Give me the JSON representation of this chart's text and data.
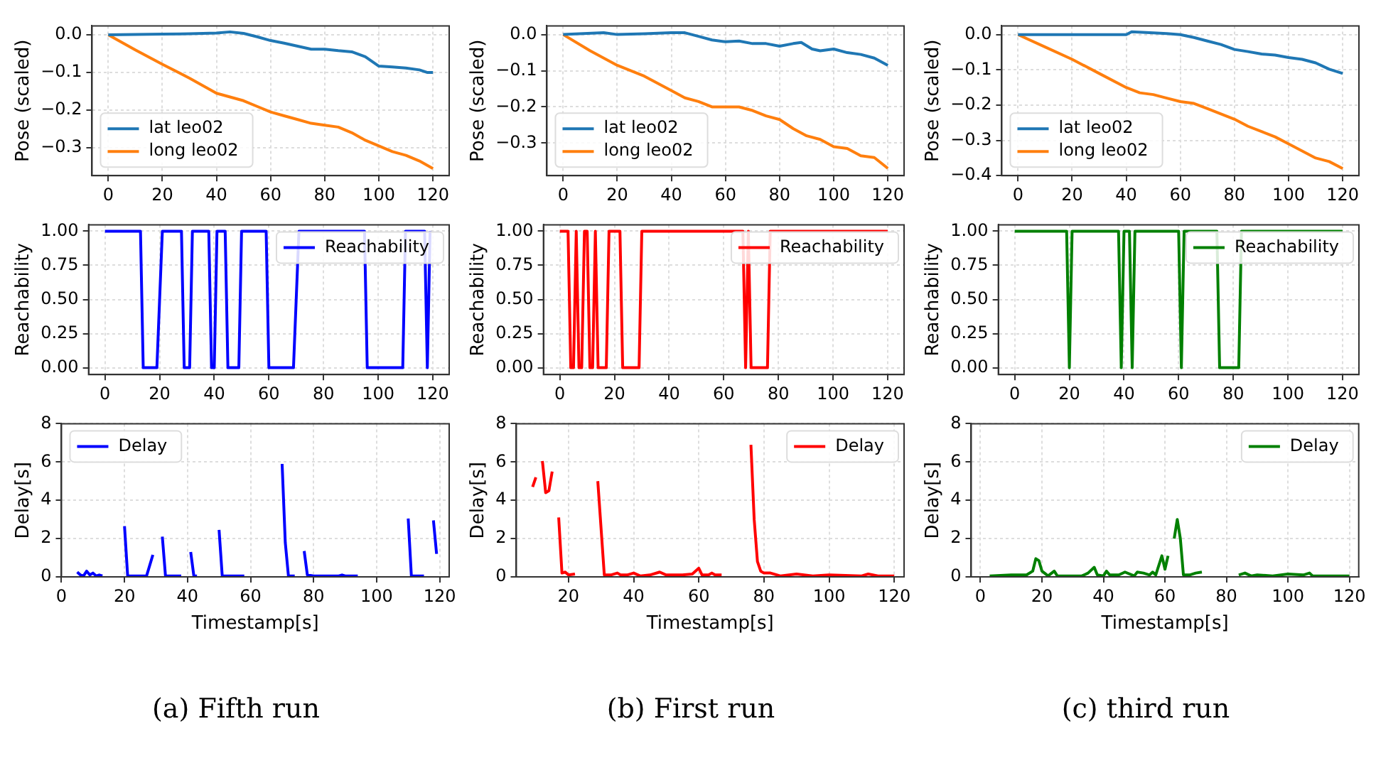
{
  "chart_data": [
    {
      "type": "line",
      "ylabel": "Pose (scaled)",
      "xlim": [
        -6,
        126
      ],
      "xticks": [
        0,
        20,
        40,
        60,
        80,
        100,
        120
      ],
      "ylim": [
        -0.374,
        0.024
      ],
      "yticks": [
        {
          "value": 0,
          "label": "0.0"
        },
        {
          "value": -0.1,
          "label": "−0.1"
        },
        {
          "value": -0.2,
          "label": "−0.2"
        },
        {
          "value": -0.3,
          "label": "−0.3"
        }
      ],
      "grid": true,
      "legend": "bottom left",
      "series": [
        {
          "name": "lat leo02",
          "color": "#1f77b4",
          "x": [
            0,
            10,
            20,
            30,
            40,
            45,
            50,
            55,
            60,
            65,
            70,
            75,
            80,
            85,
            90,
            95,
            100,
            105,
            110,
            115,
            118,
            120
          ],
          "values": [
            0,
            0.001,
            0.002,
            0.003,
            0.005,
            0.008,
            0.004,
            -0.005,
            -0.015,
            -0.022,
            -0.03,
            -0.038,
            -0.038,
            -0.042,
            -0.045,
            -0.058,
            -0.083,
            -0.085,
            -0.088,
            -0.093,
            -0.1,
            -0.1
          ]
        },
        {
          "name": "long leo02",
          "color": "#ff7f0e",
          "x": [
            0,
            10,
            20,
            30,
            40,
            45,
            50,
            55,
            60,
            65,
            70,
            75,
            80,
            85,
            90,
            95,
            100,
            105,
            110,
            115,
            120
          ],
          "values": [
            0,
            -0.04,
            -0.078,
            -0.115,
            -0.155,
            -0.165,
            -0.175,
            -0.19,
            -0.205,
            -0.215,
            -0.225,
            -0.235,
            -0.24,
            -0.245,
            -0.26,
            -0.28,
            -0.295,
            -0.31,
            -0.32,
            -0.335,
            -0.355
          ]
        }
      ]
    },
    {
      "type": "line",
      "ylabel": "Reachability",
      "xlim": [
        -6,
        126
      ],
      "xticks": [
        0,
        20,
        40,
        60,
        80,
        100,
        120
      ],
      "ylim": [
        -0.05,
        1.047
      ],
      "yticks": [
        {
          "value": 0,
          "label": "0.00"
        },
        {
          "value": 0.25,
          "label": "0.25"
        },
        {
          "value": 0.5,
          "label": "0.50"
        },
        {
          "value": 0.75,
          "label": "0.75"
        },
        {
          "value": 1,
          "label": "1.00"
        }
      ],
      "grid": true,
      "legend": "top right",
      "series": [
        {
          "name": "Reachability",
          "color": "#0000ff",
          "x": [
            0,
            13,
            14,
            19,
            21,
            28,
            29,
            31,
            32,
            38,
            39,
            40,
            41,
            44,
            45,
            49,
            50,
            59,
            60,
            69,
            71,
            95,
            96,
            109,
            110,
            117,
            118,
            119
          ],
          "values": [
            1,
            1,
            0,
            0,
            1,
            1,
            0,
            0,
            1,
            1,
            0,
            0,
            1,
            1,
            0,
            0,
            1,
            1,
            0,
            0,
            1,
            1,
            0,
            0,
            1,
            1,
            0,
            1
          ]
        }
      ]
    },
    {
      "type": "line",
      "xlabel": "Timestamp[s]",
      "ylabel": "Delay[s]",
      "xlim": [
        0,
        123
      ],
      "xticks": [
        0,
        20,
        40,
        60,
        80,
        100,
        120
      ],
      "ylim": [
        0,
        8
      ],
      "yticks": [
        0,
        2,
        4,
        6,
        8
      ],
      "grid": true,
      "legend": "top left",
      "annotations": [
        "(a) Fifth run"
      ],
      "series": [
        {
          "name": "Delay",
          "color": "#0000ff",
          "x": [
            5,
            6,
            7,
            8,
            9,
            10,
            11,
            12,
            13,
            16,
            20,
            21,
            27,
            29,
            30,
            32,
            33,
            38,
            39,
            41,
            42,
            43,
            46,
            50,
            51,
            58,
            64,
            70,
            71,
            72,
            74,
            75,
            77,
            78,
            80,
            88,
            89,
            90,
            94,
            100,
            110,
            111,
            115,
            116,
            118,
            119
          ],
          "values": [
            0.25,
            0.1,
            0.05,
            0.3,
            0.1,
            0.2,
            0.05,
            0.1,
            0.05,
            null,
            2.65,
            0.05,
            0.05,
            1.15,
            null,
            2.1,
            0.05,
            0.05,
            null,
            1.3,
            0.05,
            0.05,
            null,
            2.45,
            0.05,
            0.05,
            null,
            5.9,
            1.8,
            0.05,
            0.05,
            null,
            1.35,
            0.1,
            0.05,
            0.05,
            0.1,
            0.05,
            0.05,
            null,
            3.05,
            0.05,
            0.05,
            null,
            2.95,
            1.2
          ]
        }
      ]
    },
    {
      "type": "line",
      "ylabel": "Pose (scaled)",
      "xlim": [
        -6,
        126
      ],
      "xticks": [
        0,
        20,
        40,
        60,
        80,
        100,
        120
      ],
      "ylim": [
        -0.39,
        0.024
      ],
      "yticks": [
        {
          "value": 0,
          "label": "0.0"
        },
        {
          "value": -0.1,
          "label": "−0.1"
        },
        {
          "value": -0.2,
          "label": "−0.2"
        },
        {
          "value": -0.3,
          "label": "−0.3"
        }
      ],
      "grid": true,
      "legend": "bottom left",
      "series": [
        {
          "name": "lat leo02",
          "color": "#1f77b4",
          "x": [
            0,
            15,
            20,
            30,
            40,
            45,
            50,
            55,
            60,
            65,
            70,
            75,
            80,
            85,
            88,
            92,
            95,
            100,
            105,
            110,
            115,
            120
          ],
          "values": [
            0,
            0.005,
            0,
            0.002,
            0.005,
            0.005,
            -0.005,
            -0.015,
            -0.02,
            -0.018,
            -0.025,
            -0.025,
            -0.032,
            -0.025,
            -0.022,
            -0.04,
            -0.045,
            -0.04,
            -0.05,
            -0.055,
            -0.065,
            -0.085
          ]
        },
        {
          "name": "long leo02",
          "color": "#ff7f0e",
          "x": [
            0,
            10,
            20,
            30,
            40,
            45,
            50,
            55,
            60,
            65,
            70,
            75,
            80,
            85,
            90,
            95,
            100,
            105,
            110,
            115,
            120
          ],
          "values": [
            0,
            -0.045,
            -0.085,
            -0.115,
            -0.155,
            -0.175,
            -0.185,
            -0.2,
            -0.2,
            -0.2,
            -0.21,
            -0.225,
            -0.235,
            -0.26,
            -0.28,
            -0.29,
            -0.31,
            -0.315,
            -0.335,
            -0.34,
            -0.37
          ]
        }
      ]
    },
    {
      "type": "line",
      "ylabel": "Reachability",
      "xlim": [
        -6,
        126
      ],
      "xticks": [
        0,
        20,
        40,
        60,
        80,
        100,
        120
      ],
      "ylim": [
        -0.05,
        1.047
      ],
      "yticks": [
        {
          "value": 0,
          "label": "0.00"
        },
        {
          "value": 0.25,
          "label": "0.25"
        },
        {
          "value": 0.5,
          "label": "0.50"
        },
        {
          "value": 0.75,
          "label": "0.75"
        },
        {
          "value": 1,
          "label": "1.00"
        }
      ],
      "grid": true,
      "legend": "top right",
      "series": [
        {
          "name": "Reachability",
          "color": "#ff0000",
          "x": [
            0,
            3,
            4,
            5,
            6,
            7,
            8,
            9,
            10,
            11,
            12,
            13,
            14,
            17,
            18,
            22,
            23,
            29,
            30,
            67,
            68,
            69,
            70,
            76,
            77,
            120
          ],
          "values": [
            1,
            1,
            0,
            0,
            1,
            0,
            0,
            1,
            1,
            0,
            0,
            1,
            0,
            0,
            1,
            1,
            0,
            0,
            1,
            1,
            0,
            1,
            0,
            0,
            1,
            1
          ]
        }
      ]
    },
    {
      "type": "line",
      "xlabel": "Timestamp[s]",
      "ylabel": "Delay[s]",
      "xlim": [
        4,
        123
      ],
      "xticks": [
        20,
        40,
        60,
        80,
        100,
        120
      ],
      "ylim": [
        0,
        8
      ],
      "yticks": [
        0,
        2,
        4,
        6,
        8
      ],
      "grid": true,
      "legend": "top right",
      "annotations": [
        "(b) First run"
      ],
      "series": [
        {
          "name": "Delay",
          "color": "#ff0000",
          "x": [
            9,
            10,
            11,
            12,
            13,
            14,
            15,
            16,
            17,
            18,
            19,
            20,
            22,
            25,
            29,
            31,
            33,
            35,
            36,
            38,
            40,
            42,
            45,
            48,
            50,
            55,
            58,
            60,
            61,
            63,
            64,
            65,
            67,
            70,
            76,
            77,
            78,
            79,
            80,
            82,
            85,
            90,
            95,
            100,
            110,
            112,
            115,
            120
          ],
          "values": [
            4.7,
            5.2,
            null,
            6.05,
            4.4,
            4.5,
            5.5,
            null,
            3.1,
            0.2,
            0.25,
            0.1,
            0.15,
            null,
            5.0,
            0.1,
            0.1,
            0.2,
            0.1,
            0.1,
            0.2,
            0.05,
            0.1,
            0.25,
            0.1,
            0.1,
            0.15,
            0.45,
            0.1,
            0.1,
            0.2,
            0.1,
            0.1,
            null,
            6.9,
            3,
            0.8,
            0.3,
            0.2,
            0.2,
            0.05,
            0.15,
            0.05,
            0.1,
            0.05,
            0.15,
            0.05,
            0.05
          ]
        }
      ]
    },
    {
      "type": "line",
      "ylabel": "Pose (scaled)",
      "xlim": [
        -6,
        126
      ],
      "xticks": [
        0,
        20,
        40,
        60,
        80,
        100,
        120
      ],
      "ylim": [
        -0.4,
        0.025
      ],
      "yticks": [
        {
          "value": 0,
          "label": "0.0"
        },
        {
          "value": -0.1,
          "label": "−0.1"
        },
        {
          "value": -0.2,
          "label": "−0.2"
        },
        {
          "value": -0.3,
          "label": "−0.3"
        },
        {
          "value": -0.4,
          "label": "−0.4"
        }
      ],
      "grid": true,
      "legend": "bottom left",
      "series": [
        {
          "name": "lat leo02",
          "color": "#1f77b4",
          "x": [
            0,
            20,
            40,
            42,
            50,
            55,
            60,
            65,
            70,
            75,
            80,
            85,
            90,
            95,
            100,
            105,
            110,
            115,
            120
          ],
          "values": [
            0,
            0,
            0,
            0.008,
            0.005,
            0.003,
            0,
            -0.008,
            -0.018,
            -0.028,
            -0.042,
            -0.048,
            -0.055,
            -0.058,
            -0.065,
            -0.07,
            -0.08,
            -0.098,
            -0.11
          ]
        },
        {
          "name": "long leo02",
          "color": "#ff7f0e",
          "x": [
            0,
            10,
            20,
            30,
            40,
            45,
            50,
            55,
            60,
            65,
            70,
            75,
            80,
            85,
            90,
            95,
            100,
            105,
            110,
            115,
            120
          ],
          "values": [
            0,
            -0.035,
            -0.07,
            -0.11,
            -0.15,
            -0.165,
            -0.17,
            -0.18,
            -0.19,
            -0.195,
            -0.21,
            -0.225,
            -0.24,
            -0.26,
            -0.275,
            -0.29,
            -0.31,
            -0.33,
            -0.35,
            -0.36,
            -0.38
          ]
        }
      ]
    },
    {
      "type": "line",
      "ylabel": "Reachability",
      "xlim": [
        -6,
        126
      ],
      "xticks": [
        0,
        20,
        40,
        60,
        80,
        100,
        120
      ],
      "ylim": [
        -0.05,
        1.047
      ],
      "yticks": [
        {
          "value": 0,
          "label": "0.00"
        },
        {
          "value": 0.25,
          "label": "0.25"
        },
        {
          "value": 0.5,
          "label": "0.50"
        },
        {
          "value": 0.75,
          "label": "0.75"
        },
        {
          "value": 1,
          "label": "1.00"
        }
      ],
      "grid": true,
      "legend": "top right",
      "series": [
        {
          "name": "Reachability",
          "color": "#008000",
          "x": [
            0,
            19,
            20,
            21,
            38,
            39,
            40,
            42,
            43,
            44,
            60,
            61,
            62,
            74,
            75,
            82,
            83,
            120
          ],
          "values": [
            1,
            1,
            0,
            1,
            1,
            0,
            1,
            1,
            0,
            1,
            1,
            0,
            1,
            1,
            0,
            0,
            1,
            1
          ]
        }
      ]
    },
    {
      "type": "line",
      "xlabel": "Timestamp[s]",
      "ylabel": "Delay[s]",
      "xlim": [
        -3,
        123
      ],
      "xticks": [
        0,
        20,
        40,
        60,
        80,
        100,
        120
      ],
      "ylim": [
        0,
        8
      ],
      "yticks": [
        0,
        2,
        4,
        6,
        8
      ],
      "grid": true,
      "legend": "top right",
      "annotations": [
        "(c) third run"
      ],
      "series": [
        {
          "name": "Delay",
          "color": "#008000",
          "x": [
            3,
            10,
            15,
            17,
            18,
            19,
            20,
            22,
            24,
            25,
            33,
            35,
            37,
            38,
            40,
            41,
            42,
            45,
            47,
            50,
            51,
            53,
            55,
            56,
            57,
            59,
            60,
            61,
            62,
            63,
            64,
            65,
            66,
            68,
            70,
            72,
            78,
            84,
            86,
            88,
            90,
            95,
            100,
            105,
            107,
            108,
            112,
            120
          ],
          "values": [
            0.05,
            0.1,
            0.1,
            0.3,
            0.95,
            0.85,
            0.3,
            0.05,
            0.3,
            0.05,
            0.05,
            0.2,
            0.5,
            0.1,
            0.05,
            0.3,
            0.1,
            0.1,
            0.25,
            0.05,
            0.25,
            0.2,
            0.1,
            0.25,
            0.1,
            1.1,
            0.4,
            1.1,
            null,
            2.0,
            3.0,
            2.0,
            0.1,
            0.1,
            0.2,
            0.25,
            null,
            0.1,
            0.2,
            0.05,
            0.1,
            0.05,
            0.15,
            0.1,
            0.2,
            0.05,
            0.05,
            0.05
          ]
        }
      ]
    }
  ]
}
